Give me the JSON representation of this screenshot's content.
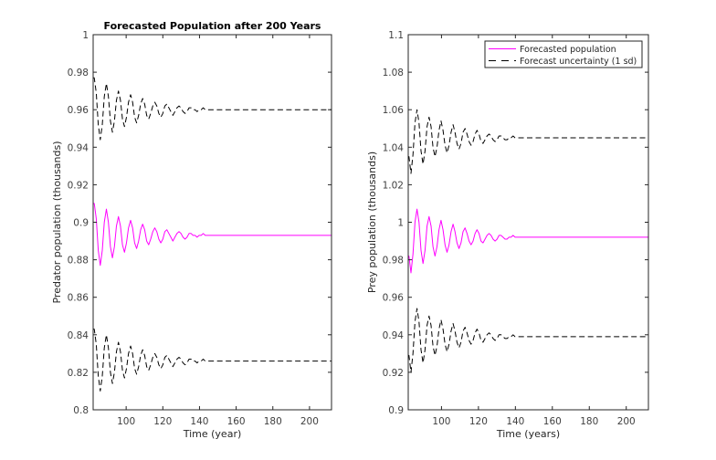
{
  "chart_data": [
    {
      "type": "line",
      "title": "Forecasted Population after 200 Years",
      "xlabel": "Time (year)",
      "ylabel": "Predator population (thousands)",
      "xlim": [
        82,
        212
      ],
      "ylim": [
        0.8,
        1.0
      ],
      "xticks": [
        100,
        120,
        140,
        160,
        180,
        200
      ],
      "xtick_labels": [
        "100",
        "120",
        "140",
        "160",
        "180",
        "200"
      ],
      "yticks": [
        0.8,
        0.82,
        0.84,
        0.86,
        0.88,
        0.9,
        0.92,
        0.94,
        0.96,
        0.98,
        1.0
      ],
      "ytick_labels": [
        "0.8",
        "0.82",
        "0.84",
        "0.86",
        "0.88",
        "0.9",
        "0.92",
        "0.94",
        "0.96",
        "0.98",
        "1"
      ],
      "grid": false,
      "t_start": 82.6,
      "t_step": 1.1,
      "t_end": 212,
      "series": [
        {
          "name": "Forecasted population",
          "color": "#ff00ff",
          "style": "solid",
          "values": [
            0.91,
            0.902,
            0.885,
            0.877,
            0.885,
            0.9,
            0.907,
            0.9,
            0.887,
            0.881,
            0.887,
            0.898,
            0.903,
            0.898,
            0.888,
            0.884,
            0.889,
            0.897,
            0.901,
            0.897,
            0.889,
            0.886,
            0.89,
            0.896,
            0.899,
            0.896,
            0.89,
            0.888,
            0.891,
            0.895,
            0.897,
            0.895,
            0.891,
            0.889,
            0.891,
            0.895,
            0.896,
            0.894,
            0.892,
            0.89,
            0.892,
            0.894,
            0.895,
            0.894,
            0.892,
            0.891,
            0.892,
            0.894,
            0.894,
            0.893,
            0.893,
            0.892,
            0.893,
            0.893,
            0.894,
            0.893,
            0.893,
            0.893,
            0.893,
            0.893
          ]
        },
        {
          "name": "Forecast uncertainty (1 sd) upper",
          "color": "#000000",
          "style": "dashed",
          "values": [
            0.977,
            0.969,
            0.952,
            0.944,
            0.952,
            0.967,
            0.974,
            0.967,
            0.954,
            0.948,
            0.954,
            0.965,
            0.97,
            0.965,
            0.955,
            0.951,
            0.956,
            0.964,
            0.968,
            0.964,
            0.956,
            0.953,
            0.957,
            0.963,
            0.966,
            0.963,
            0.957,
            0.955,
            0.958,
            0.962,
            0.964,
            0.962,
            0.958,
            0.956,
            0.958,
            0.962,
            0.963,
            0.961,
            0.959,
            0.957,
            0.959,
            0.961,
            0.962,
            0.961,
            0.959,
            0.958,
            0.959,
            0.961,
            0.961,
            0.96,
            0.96,
            0.959,
            0.96,
            0.96,
            0.961,
            0.96,
            0.96,
            0.96,
            0.96,
            0.96
          ]
        },
        {
          "name": "Forecast uncertainty (1 sd) lower",
          "color": "#000000",
          "style": "dashed",
          "values": [
            0.843,
            0.835,
            0.818,
            0.81,
            0.818,
            0.833,
            0.84,
            0.833,
            0.82,
            0.814,
            0.82,
            0.831,
            0.836,
            0.831,
            0.821,
            0.817,
            0.822,
            0.83,
            0.834,
            0.83,
            0.822,
            0.819,
            0.823,
            0.829,
            0.832,
            0.829,
            0.823,
            0.821,
            0.824,
            0.828,
            0.83,
            0.828,
            0.824,
            0.822,
            0.824,
            0.828,
            0.829,
            0.827,
            0.825,
            0.823,
            0.825,
            0.827,
            0.828,
            0.827,
            0.825,
            0.824,
            0.825,
            0.827,
            0.827,
            0.826,
            0.826,
            0.825,
            0.826,
            0.826,
            0.827,
            0.826,
            0.826,
            0.826,
            0.826,
            0.826
          ]
        }
      ]
    },
    {
      "type": "line",
      "title": "",
      "xlabel": "Time (years)",
      "ylabel": "Prey population (thousands)",
      "xlim": [
        82,
        212
      ],
      "ylim": [
        0.9,
        1.1
      ],
      "xticks": [
        100,
        120,
        140,
        160,
        180,
        200
      ],
      "xtick_labels": [
        "100",
        "120",
        "140",
        "160",
        "180",
        "200"
      ],
      "yticks": [
        0.9,
        0.92,
        0.94,
        0.96,
        0.98,
        1.0,
        1.02,
        1.04,
        1.06,
        1.08,
        1.1
      ],
      "ytick_labels": [
        "0.9",
        "0.92",
        "0.94",
        "0.96",
        "0.98",
        "1",
        "1.02",
        "1.04",
        "1.06",
        "1.08",
        "1.1"
      ],
      "grid": false,
      "legend": {
        "position": "top-right",
        "entries": [
          "Forecasted population",
          "Forecast uncertainty (1 sd)"
        ]
      },
      "t_start": 82.42,
      "t_step": 1.083,
      "t_end": 212,
      "series": [
        {
          "name": "Forecasted population",
          "color": "#ff00ff",
          "style": "solid",
          "values": [
            0.982,
            0.973,
            0.983,
            1.0,
            1.007,
            1.0,
            0.985,
            0.978,
            0.985,
            0.998,
            1.003,
            0.998,
            0.987,
            0.982,
            0.987,
            0.996,
            1.001,
            0.996,
            0.988,
            0.984,
            0.988,
            0.995,
            0.999,
            0.995,
            0.989,
            0.986,
            0.989,
            0.995,
            0.997,
            0.994,
            0.99,
            0.988,
            0.99,
            0.994,
            0.996,
            0.994,
            0.99,
            0.989,
            0.991,
            0.993,
            0.994,
            0.993,
            0.991,
            0.99,
            0.991,
            0.993,
            0.993,
            0.992,
            0.991,
            0.991,
            0.992,
            0.992,
            0.993,
            0.992,
            0.992,
            0.992
          ]
        },
        {
          "name": "Forecast uncertainty (1 sd) upper",
          "color": "#000000",
          "style": "dashed",
          "values": [
            1.035,
            1.026,
            1.036,
            1.053,
            1.06,
            1.053,
            1.038,
            1.031,
            1.038,
            1.051,
            1.056,
            1.051,
            1.04,
            1.035,
            1.04,
            1.049,
            1.054,
            1.049,
            1.041,
            1.037,
            1.041,
            1.048,
            1.052,
            1.048,
            1.042,
            1.039,
            1.042,
            1.048,
            1.05,
            1.047,
            1.043,
            1.041,
            1.043,
            1.047,
            1.049,
            1.047,
            1.043,
            1.042,
            1.044,
            1.046,
            1.047,
            1.046,
            1.044,
            1.043,
            1.044,
            1.046,
            1.046,
            1.045,
            1.044,
            1.044,
            1.045,
            1.045,
            1.046,
            1.045,
            1.045,
            1.045
          ]
        },
        {
          "name": "Forecast uncertainty (1 sd) lower",
          "color": "#000000",
          "style": "dashed",
          "values": [
            0.929,
            0.92,
            0.93,
            0.947,
            0.954,
            0.947,
            0.932,
            0.925,
            0.932,
            0.945,
            0.95,
            0.945,
            0.934,
            0.929,
            0.934,
            0.943,
            0.948,
            0.943,
            0.935,
            0.931,
            0.935,
            0.942,
            0.946,
            0.942,
            0.936,
            0.933,
            0.936,
            0.942,
            0.944,
            0.941,
            0.937,
            0.935,
            0.937,
            0.941,
            0.943,
            0.941,
            0.937,
            0.936,
            0.938,
            0.94,
            0.941,
            0.94,
            0.938,
            0.937,
            0.938,
            0.94,
            0.94,
            0.939,
            0.938,
            0.938,
            0.939,
            0.939,
            0.94,
            0.939,
            0.939,
            0.939
          ]
        }
      ]
    }
  ]
}
